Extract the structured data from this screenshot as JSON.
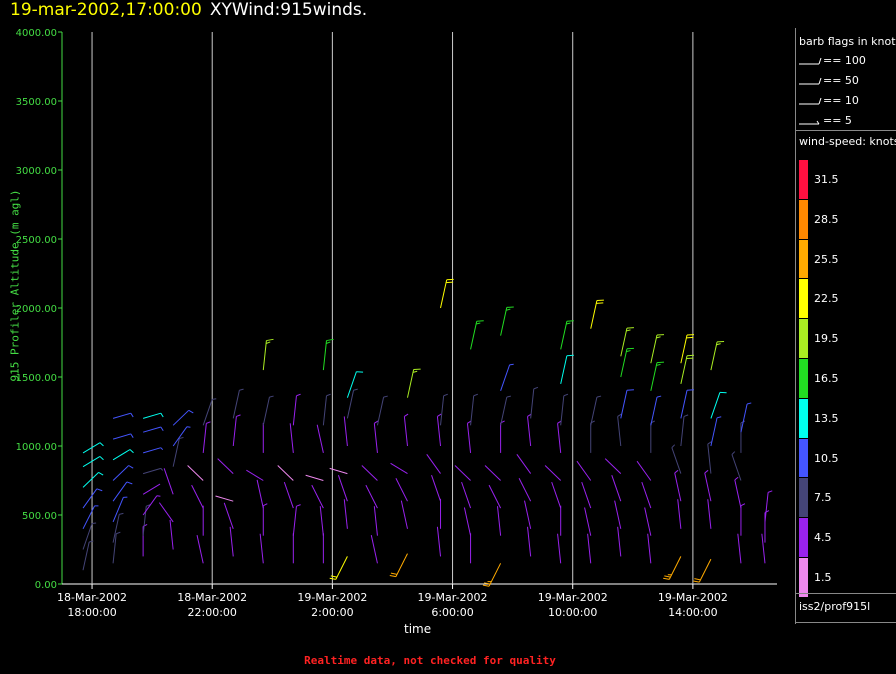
{
  "header": {
    "timestamp": "19-mar-2002,17:00:00",
    "title": "XYWind:915winds."
  },
  "footer": {
    "note": "Realtime data, not checked for quality"
  },
  "legend": {
    "barb_title": "barb flags in knots",
    "barbs": [
      {
        "label": "== 100"
      },
      {
        "label": "== 50"
      },
      {
        "label": "== 10"
      },
      {
        "label": "== 5"
      }
    ],
    "speed_title": "wind-speed: knots",
    "speed_bins": [
      {
        "label": "31.5",
        "color": "#ff1040"
      },
      {
        "label": "28.5",
        "color": "#ff8800"
      },
      {
        "label": "25.5",
        "color": "#ffaa00"
      },
      {
        "label": "22.5",
        "color": "#ffff00"
      },
      {
        "label": "19.5",
        "color": "#aaee22"
      },
      {
        "label": "16.5",
        "color": "#22dd22"
      },
      {
        "label": "13.5",
        "color": "#00ffee"
      },
      {
        "label": "10.5",
        "color": "#4455ff"
      },
      {
        "label": "7.5",
        "color": "#444477"
      },
      {
        "label": "4.5",
        "color": "#9922ee"
      },
      {
        "label": "1.5",
        "color": "#ee88ee"
      }
    ],
    "source": "iss2/prof915l"
  },
  "chart_data": {
    "type": "scatter",
    "ylabel": "915 Profiler Altitude (m agl)",
    "xlabel": "time",
    "ylim": [
      0,
      4000
    ],
    "yticks": [
      "0.00",
      "500.00",
      "1000.00",
      "1500.00",
      "2000.00",
      "2500.00",
      "3000.00",
      "3500.00",
      "4000.00"
    ],
    "xticks": [
      {
        "date": "18-Mar-2002",
        "time": "18:00:00"
      },
      {
        "date": "18-Mar-2002",
        "time": "22:00:00"
      },
      {
        "date": "19-Mar-2002",
        "time": "2:00:00"
      },
      {
        "date": "19-Mar-2002",
        "time": "6:00:00"
      },
      {
        "date": "19-Mar-2002",
        "time": "10:00:00"
      },
      {
        "date": "19-Mar-2002",
        "time": "14:00:00"
      }
    ],
    "x_hours_since_start": [
      0,
      4,
      8,
      12,
      16,
      20
    ],
    "xlim_hours": [
      -1,
      22.8
    ],
    "grid": "vertical at x ticks",
    "series_note": "wind barbs (speed kt, direction deg) at hourly profiles",
    "profiles": [
      {
        "t": -0.3,
        "barbs": [
          [
            100,
            6,
            200
          ],
          [
            250,
            8,
            210
          ],
          [
            400,
            9,
            220
          ],
          [
            550,
            10,
            230
          ],
          [
            700,
            12,
            240
          ],
          [
            850,
            13,
            250
          ],
          [
            950,
            14,
            250
          ]
        ]
      },
      {
        "t": 0.7,
        "barbs": [
          [
            150,
            6,
            190
          ],
          [
            300,
            8,
            200
          ],
          [
            450,
            9,
            215
          ],
          [
            600,
            10,
            230
          ],
          [
            750,
            11,
            240
          ],
          [
            900,
            12,
            250
          ],
          [
            1050,
            11,
            260
          ],
          [
            1200,
            10,
            260
          ]
        ]
      },
      {
        "t": 1.7,
        "barbs": [
          [
            200,
            5,
            180
          ],
          [
            350,
            6,
            190
          ],
          [
            500,
            5,
            230
          ],
          [
            650,
            4,
            250
          ],
          [
            800,
            6,
            260
          ],
          [
            950,
            9,
            260
          ],
          [
            1100,
            11,
            260
          ],
          [
            1200,
            12,
            260
          ]
        ]
      },
      {
        "t": 2.7,
        "barbs": [
          [
            250,
            4,
            170
          ],
          [
            450,
            3,
            130
          ],
          [
            650,
            4,
            150
          ],
          [
            850,
            6,
            200
          ],
          [
            1000,
            9,
            230
          ],
          [
            1150,
            11,
            240
          ]
        ]
      },
      {
        "t": 3.7,
        "barbs": [
          [
            150,
            3,
            160
          ],
          [
            350,
            4,
            180
          ],
          [
            550,
            3,
            140
          ],
          [
            750,
            2,
            120
          ],
          [
            950,
            5,
            190
          ],
          [
            1150,
            7,
            210
          ]
        ]
      },
      {
        "t": 4.7,
        "barbs": [
          [
            200,
            4,
            170
          ],
          [
            400,
            3,
            150
          ],
          [
            600,
            2,
            100
          ],
          [
            800,
            3,
            120
          ],
          [
            1000,
            5,
            190
          ],
          [
            1200,
            7,
            200
          ]
        ]
      },
      {
        "t": 5.7,
        "barbs": [
          [
            150,
            4,
            170
          ],
          [
            350,
            5,
            180
          ],
          [
            550,
            4,
            160
          ],
          [
            750,
            3,
            110
          ],
          [
            950,
            4,
            180
          ],
          [
            1150,
            6,
            200
          ],
          [
            1550,
            18,
            190
          ]
        ]
      },
      {
        "t": 6.7,
        "barbs": [
          [
            150,
            4,
            180
          ],
          [
            350,
            5,
            190
          ],
          [
            550,
            3,
            150
          ],
          [
            750,
            2,
            120
          ],
          [
            950,
            3,
            170
          ],
          [
            1150,
            5,
            190
          ]
        ]
      },
      {
        "t": 7.7,
        "barbs": [
          [
            150,
            3,
            180
          ],
          [
            350,
            4,
            170
          ],
          [
            550,
            3,
            140
          ],
          [
            750,
            2,
            100
          ],
          [
            950,
            4,
            160
          ],
          [
            1150,
            6,
            190
          ],
          [
            1550,
            17,
            190
          ]
        ]
      },
      {
        "t": 8.5,
        "barbs": [
          [
            200,
            22,
            40
          ],
          [
            400,
            4,
            170
          ],
          [
            600,
            3,
            150
          ],
          [
            800,
            2,
            100
          ],
          [
            1000,
            4,
            170
          ],
          [
            1200,
            8,
            200
          ],
          [
            1350,
            14,
            210
          ]
        ]
      },
      {
        "t": 9.5,
        "barbs": [
          [
            150,
            4,
            160
          ],
          [
            350,
            4,
            170
          ],
          [
            550,
            4,
            140
          ],
          [
            750,
            3,
            120
          ],
          [
            950,
            5,
            170
          ],
          [
            1150,
            7,
            200
          ]
        ]
      },
      {
        "t": 10.5,
        "barbs": [
          [
            220,
            24,
            40
          ],
          [
            400,
            4,
            160
          ],
          [
            600,
            3,
            140
          ],
          [
            800,
            3,
            110
          ],
          [
            1000,
            5,
            170
          ],
          [
            1350,
            18,
            200
          ]
        ]
      },
      {
        "t": 11.6,
        "barbs": [
          [
            200,
            4,
            170
          ],
          [
            400,
            4,
            180
          ],
          [
            600,
            4,
            150
          ],
          [
            800,
            3,
            130
          ],
          [
            1000,
            5,
            170
          ],
          [
            1150,
            8,
            190
          ],
          [
            2000,
            22,
            200
          ]
        ]
      },
      {
        "t": 12.6,
        "barbs": [
          [
            150,
            4,
            180
          ],
          [
            350,
            3,
            160
          ],
          [
            550,
            4,
            150
          ],
          [
            750,
            3,
            120
          ],
          [
            950,
            5,
            170
          ],
          [
            1150,
            7,
            190
          ],
          [
            1700,
            17,
            200
          ]
        ]
      },
      {
        "t": 13.6,
        "barbs": [
          [
            150,
            25,
            40
          ],
          [
            350,
            3,
            170
          ],
          [
            550,
            4,
            140
          ],
          [
            750,
            3,
            120
          ],
          [
            950,
            5,
            180
          ],
          [
            1150,
            7,
            200
          ],
          [
            1400,
            9,
            210
          ],
          [
            1800,
            17,
            200
          ]
        ]
      },
      {
        "t": 14.6,
        "barbs": [
          [
            200,
            3,
            170
          ],
          [
            400,
            4,
            160
          ],
          [
            600,
            3,
            140
          ],
          [
            800,
            3,
            130
          ],
          [
            1000,
            5,
            170
          ],
          [
            1200,
            7,
            190
          ]
        ]
      },
      {
        "t": 15.6,
        "barbs": [
          [
            150,
            4,
            170
          ],
          [
            350,
            4,
            180
          ],
          [
            550,
            4,
            150
          ],
          [
            750,
            3,
            120
          ],
          [
            950,
            5,
            170
          ],
          [
            1150,
            7,
            190
          ],
          [
            1450,
            14,
            200
          ],
          [
            1700,
            16,
            200
          ]
        ]
      },
      {
        "t": 16.6,
        "barbs": [
          [
            150,
            4,
            170
          ],
          [
            350,
            4,
            160
          ],
          [
            550,
            4,
            150
          ],
          [
            750,
            4,
            130
          ],
          [
            950,
            6,
            180
          ],
          [
            1150,
            8,
            200
          ],
          [
            1850,
            23,
            200
          ]
        ]
      },
      {
        "t": 17.6,
        "barbs": [
          [
            200,
            4,
            170
          ],
          [
            400,
            4,
            160
          ],
          [
            600,
            4,
            150
          ],
          [
            800,
            4,
            120
          ],
          [
            1000,
            6,
            170
          ],
          [
            1200,
            10,
            200
          ],
          [
            1500,
            16,
            200
          ],
          [
            1650,
            19,
            200
          ]
        ]
      },
      {
        "t": 18.6,
        "barbs": [
          [
            150,
            4,
            170
          ],
          [
            350,
            4,
            160
          ],
          [
            550,
            4,
            150
          ],
          [
            750,
            4,
            130
          ],
          [
            950,
            6,
            180
          ],
          [
            1150,
            9,
            200
          ],
          [
            1400,
            17,
            200
          ],
          [
            1600,
            19,
            200
          ]
        ]
      },
      {
        "t": 19.6,
        "barbs": [
          [
            200,
            25,
            40
          ],
          [
            400,
            4,
            170
          ],
          [
            600,
            5,
            160
          ],
          [
            800,
            6,
            150
          ],
          [
            1000,
            8,
            190
          ],
          [
            1200,
            10,
            200
          ],
          [
            1450,
            20,
            200
          ],
          [
            1600,
            21,
            200
          ]
        ]
      },
      {
        "t": 20.6,
        "barbs": [
          [
            180,
            24,
            40
          ],
          [
            400,
            4,
            170
          ],
          [
            600,
            5,
            160
          ],
          [
            800,
            7,
            170
          ],
          [
            1000,
            9,
            200
          ],
          [
            1200,
            12,
            210
          ],
          [
            1550,
            19,
            200
          ]
        ]
      },
      {
        "t": 21.6,
        "barbs": [
          [
            150,
            4,
            170
          ],
          [
            350,
            5,
            180
          ],
          [
            550,
            5,
            160
          ],
          [
            750,
            6,
            150
          ],
          [
            950,
            8,
            180
          ],
          [
            1100,
            9,
            200
          ]
        ]
      },
      {
        "t": 22.4,
        "barbs": [
          [
            150,
            4,
            170
          ],
          [
            300,
            5,
            180
          ],
          [
            450,
            5,
            190
          ]
        ]
      }
    ]
  }
}
